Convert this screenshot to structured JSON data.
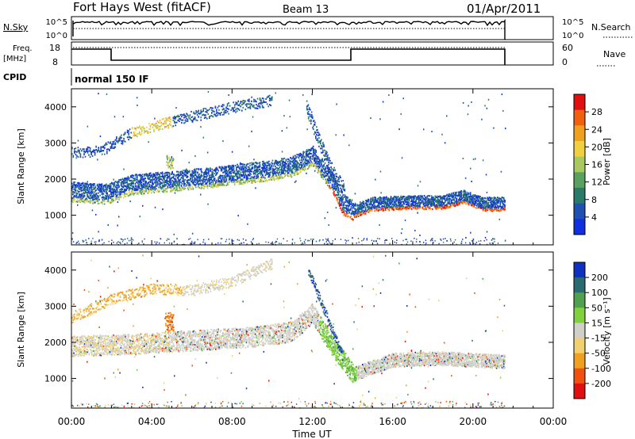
{
  "header": {
    "station": "Fort Hays West (fitACF)",
    "beam": "Beam 13",
    "date": "01/Apr/2011"
  },
  "panels": {
    "nsky": {
      "label": "N.Sky",
      "ticks": [
        "10^5",
        "10^0"
      ],
      "right_ticks": [
        "10^5",
        "10^0"
      ],
      "right_label": "N.Search"
    },
    "freq": {
      "label_line1": "Freq.",
      "label_line2": "[MHz]",
      "ticks": [
        "18",
        "8"
      ],
      "right_ticks": [
        "60",
        "0"
      ],
      "right_label": "Nave"
    },
    "cpid": {
      "label": "CPID",
      "value": "normal 150 IF"
    }
  },
  "x_axis": {
    "label": "Time UT",
    "ticks": [
      "00:00",
      "04:00",
      "08:00",
      "12:00",
      "16:00",
      "20:00",
      "00:00"
    ]
  },
  "colors": {
    "power": [
      "#1030e0",
      "#2050b0",
      "#2a7a6a",
      "#5aa060",
      "#a8c860",
      "#f0d040",
      "#f0a020",
      "#f06010",
      "#e01010"
    ],
    "velocity": [
      "#e01010",
      "#f05010",
      "#f0a020",
      "#f0d070",
      "#d0d0c8",
      "#80d040",
      "#50a050",
      "#2a6a70",
      "#1030c0"
    ]
  },
  "chart_data": [
    {
      "type": "heatmap",
      "title": "",
      "xlabel": "",
      "ylabel": "Slant Range [km]",
      "xlim": [
        0,
        24
      ],
      "ylim": [
        180,
        4500
      ],
      "yticks": [
        1000,
        2000,
        3000,
        4000
      ],
      "colorbar": {
        "label": "Power [dB]",
        "ticks": [
          "28",
          "24",
          "20",
          "16",
          "12",
          "8",
          "4"
        ],
        "range": [
          0,
          30
        ]
      },
      "features": [
        {
          "name": "main-band",
          "x": [
            0,
            1.2,
            1.8,
            3,
            5,
            7,
            8.5,
            10,
            11,
            12,
            13,
            13.5,
            14,
            15,
            17,
            18.5,
            19.5,
            20.5,
            21.6
          ],
          "y": [
            1550,
            1500,
            1500,
            1750,
            1850,
            1950,
            2050,
            2150,
            2250,
            2550,
            1800,
            1200,
            1050,
            1250,
            1300,
            1300,
            1450,
            1250,
            1250
          ]
        },
        {
          "name": "upper-band",
          "x": [
            0,
            1.5,
            3,
            4.5,
            6,
            8,
            10
          ],
          "y": [
            2750,
            2800,
            3300,
            3550,
            3750,
            4000,
            4200
          ]
        },
        {
          "name": "tower",
          "x": [
            11.7,
            12.3,
            13,
            13.6
          ],
          "y": [
            4000,
            3100,
            2200,
            1700
          ]
        }
      ]
    },
    {
      "type": "heatmap",
      "title": "",
      "xlabel": "Time UT",
      "ylabel": "Slant Range [km]",
      "xlim": [
        0,
        24
      ],
      "ylim": [
        180,
        4500
      ],
      "yticks": [
        1000,
        2000,
        3000,
        4000
      ],
      "colorbar": {
        "label": "Velocity [m s⁻¹]",
        "ticks": [
          "200",
          "100",
          "50",
          "15",
          "-15",
          "-50",
          "-100",
          "-200"
        ],
        "range": [
          -250,
          250
        ]
      },
      "features": [
        {
          "name": "main-band",
          "x": [
            0,
            3,
            6,
            9,
            11,
            12,
            13,
            14,
            16,
            18,
            20,
            21.6
          ],
          "y": [
            1800,
            1850,
            1950,
            2050,
            2200,
            2700,
            1800,
            1050,
            1450,
            1500,
            1450,
            1400
          ]
        },
        {
          "name": "upper-band",
          "x": [
            0,
            2,
            4,
            6,
            8,
            10
          ],
          "y": [
            2700,
            3200,
            3500,
            3450,
            3700,
            4200
          ]
        },
        {
          "name": "negative-patch",
          "x": [
            4.7,
            4.9
          ],
          "y": [
            2800,
            2300
          ]
        }
      ]
    }
  ]
}
